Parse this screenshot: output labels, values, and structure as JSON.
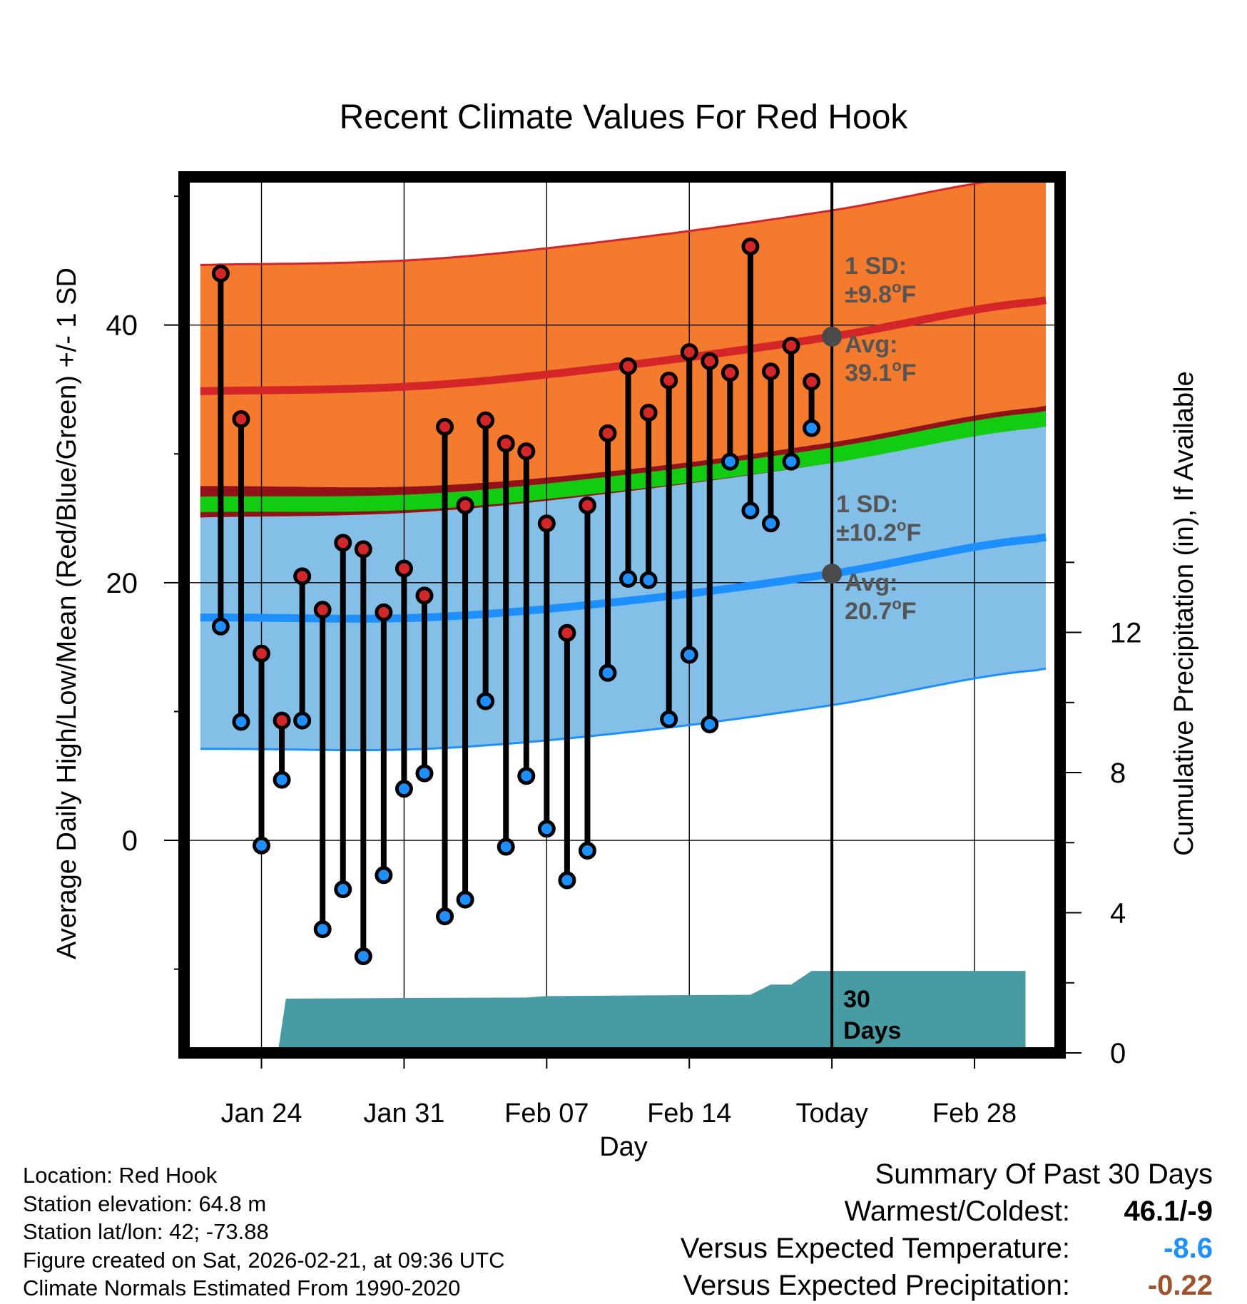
{
  "chart_data": {
    "type": "line",
    "title": "Recent Climate Values For Red Hook",
    "xlabel": "Day",
    "ylabel": "Average Daily High/Low/Mean (Red/Blue/Green) +/- 1 SD",
    "y2label": "Cumulative Precipitation (in), If Available",
    "x_range_days": [
      -31.8,
      11.2
    ],
    "ylim": [
      -16.5,
      51.5
    ],
    "y2lim": [
      0,
      25
    ],
    "x_ticks": [
      {
        "day": -28,
        "label": "Jan 24"
      },
      {
        "day": -21,
        "label": "Jan 31"
      },
      {
        "day": -14,
        "label": "Feb 07"
      },
      {
        "day": -7,
        "label": "Feb 14"
      },
      {
        "day": 0,
        "label": "Today"
      },
      {
        "day": 7,
        "label": "Feb 28"
      }
    ],
    "y_ticks": [
      0,
      20,
      40
    ],
    "y2_ticks": [
      0,
      4,
      8,
      12
    ],
    "daily_days": [
      -30,
      -29,
      -28,
      -27,
      -26,
      -25,
      -24,
      -23,
      -22,
      -21,
      -20,
      -19,
      -18,
      -17,
      -16,
      -15,
      -14,
      -13,
      -12,
      -11,
      -10,
      -9,
      -8,
      -7,
      -6,
      -5,
      -4,
      -3,
      -2,
      -1
    ],
    "daily_highs": [
      44.0,
      32.7,
      14.5,
      9.3,
      20.5,
      17.9,
      23.1,
      22.6,
      17.7,
      21.1,
      19.0,
      32.1,
      26.0,
      32.6,
      30.8,
      30.2,
      24.6,
      16.1,
      26.0,
      31.6,
      36.8,
      33.2,
      35.7,
      37.9,
      37.2,
      36.3,
      46.1,
      36.4,
      38.4,
      35.6
    ],
    "daily_lows": [
      16.6,
      9.2,
      -0.4,
      4.7,
      9.3,
      -6.9,
      -3.8,
      -9.0,
      -2.7,
      4.0,
      5.2,
      -5.9,
      -4.6,
      10.8,
      -0.5,
      5.0,
      0.9,
      -3.1,
      -0.8,
      13.0,
      20.3,
      20.2,
      9.4,
      14.4,
      9.0,
      29.4,
      25.6,
      24.6,
      29.4,
      32.0
    ],
    "normals": {
      "days": [
        -30,
        -20,
        -10,
        0,
        10
      ],
      "high_avg": [
        34.9,
        35.3,
        36.9,
        39.1,
        41.8
      ],
      "high_sd": 9.8,
      "low_avg": [
        17.3,
        17.3,
        18.6,
        20.7,
        23.4
      ],
      "low_sd": 10.2,
      "mean_avg": [
        26.1,
        26.3,
        27.8,
        29.9,
        32.6
      ],
      "mean_sd": 0.6
    },
    "precip_cumulative": {
      "days": [
        -27.2,
        -26.8,
        -20.0,
        -15.0,
        -14.0,
        -7.0,
        -4.0,
        -3.0,
        -2.0,
        -1.0,
        0,
        9.5
      ],
      "values": [
        0.0,
        1.55,
        1.57,
        1.58,
        1.62,
        1.65,
        1.66,
        1.95,
        1.95,
        2.34,
        2.34,
        2.34
      ]
    },
    "window_length": 30,
    "annotations": {
      "high_sd": {
        "title": "1 SD:",
        "value": "±9.8",
        "unit": "oF"
      },
      "high_avg": {
        "title": "Avg:",
        "value": "39.1",
        "unit": "oF"
      },
      "low_sd": {
        "title": "1 SD:",
        "value": "±10.2",
        "unit": "oF"
      },
      "low_avg": {
        "title": "Avg:",
        "value": "20.7",
        "unit": "oF"
      },
      "days_line1": "30",
      "days_line2": "Days"
    },
    "colors": {
      "high_band": "#f47a2d",
      "high_line": "#d42528",
      "low_band": "#83bfe6",
      "low_line": "#1e8fff",
      "overlap_band": "#94111a",
      "mean_line": "#12cc12",
      "precip_fill": "#479ba2",
      "high_marker": "#d42528",
      "low_marker": "#1e8fff",
      "avg_marker": "#4a4a4a",
      "annotation_text": "#555555"
    }
  },
  "info": {
    "location": "Location: Red Hook",
    "elevation": "Station elevation: 64.8 m",
    "latlon": "Station lat/lon: 42; -73.88",
    "created": "Figure created on Sat, 2026-02-21, at 09:36 UTC",
    "normals": "Climate Normals Estimated From 1990-2020"
  },
  "summary": {
    "title": "Summary Of Past 30 Days",
    "warmest_label": "Warmest/Coldest:",
    "warmest_value": "46.1/-9",
    "temp_label": "Versus Expected Temperature:",
    "temp_value": "-8.6",
    "temp_color": "#1e8fff",
    "precip_label": "Versus Expected Precipitation:",
    "precip_value": "-0.22",
    "precip_color": "#a0522d"
  }
}
